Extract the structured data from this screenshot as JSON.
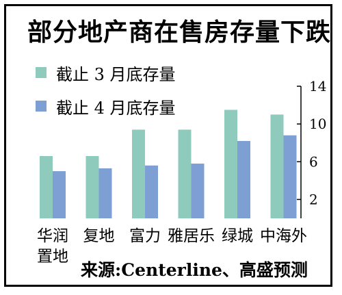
{
  "chart_data": {
    "type": "bar",
    "title": "部分地产商在售房存量下跌",
    "categories": [
      [
        "华润",
        "置地"
      ],
      [
        "复地"
      ],
      [
        "富力"
      ],
      [
        "雅居乐"
      ],
      [
        "绿城"
      ],
      [
        "中海外"
      ]
    ],
    "series": [
      {
        "name": "截止 3 月底存量",
        "values": [
          6.6,
          6.6,
          9.4,
          9.4,
          11.5,
          11.0
        ],
        "color": "#8fcbbd"
      },
      {
        "name": "截止 4 月底存量",
        "values": [
          5.0,
          5.3,
          5.6,
          5.8,
          8.2,
          8.8
        ],
        "color": "#7d9fd3"
      }
    ],
    "ylim": [
      0,
      14
    ],
    "yticks": [
      2,
      6,
      10,
      14
    ],
    "y_axis_side": "right",
    "legend_position": "top-left",
    "grid": false
  },
  "source_text": "来源:Centerline、高盛预测"
}
